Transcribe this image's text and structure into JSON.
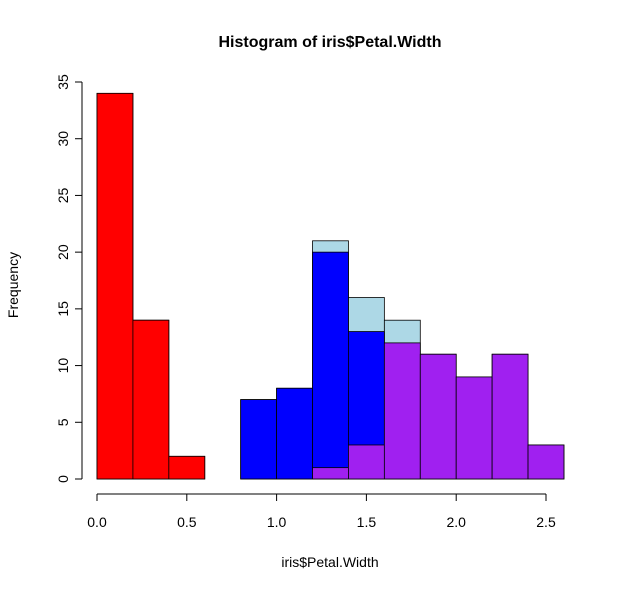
{
  "chart_data": {
    "type": "histogram",
    "title": "Histogram of iris$Petal.Width",
    "x_label": "iris$Petal.Width",
    "y_label": "Frequency",
    "bins": [
      0,
      0.2,
      0.4,
      0.6,
      0.8,
      1.0,
      1.2,
      1.4,
      1.6,
      1.8,
      2.0,
      2.2,
      2.4,
      2.6
    ],
    "series": [
      {
        "color": "#add8e6",
        "values": [
          34,
          14,
          2,
          0,
          7,
          8,
          21,
          16,
          14,
          11,
          9,
          11,
          3
        ]
      },
      {
        "color": "#ff0000",
        "values": [
          34,
          14,
          2,
          0,
          0,
          0,
          0,
          0,
          0,
          0,
          0,
          0,
          0
        ]
      },
      {
        "color": "#0000ff",
        "values": [
          0,
          0,
          0,
          0,
          7,
          8,
          20,
          13,
          2,
          0,
          0,
          0,
          0
        ]
      },
      {
        "color": "#a020f0",
        "values": [
          0,
          0,
          0,
          0,
          0,
          0,
          1,
          3,
          12,
          11,
          9,
          11,
          3
        ]
      }
    ],
    "xlim": [
      0,
      2.6
    ],
    "ylim": [
      0,
      35
    ],
    "xticks": [
      {
        "value": 0,
        "label": "0.0"
      },
      0.5,
      {
        "value": 1,
        "label": "1.0"
      },
      1.5,
      {
        "value": 2,
        "label": "2.0"
      },
      2.5
    ],
    "yticks": [
      0,
      5,
      10,
      15,
      20,
      25,
      30,
      35
    ]
  }
}
